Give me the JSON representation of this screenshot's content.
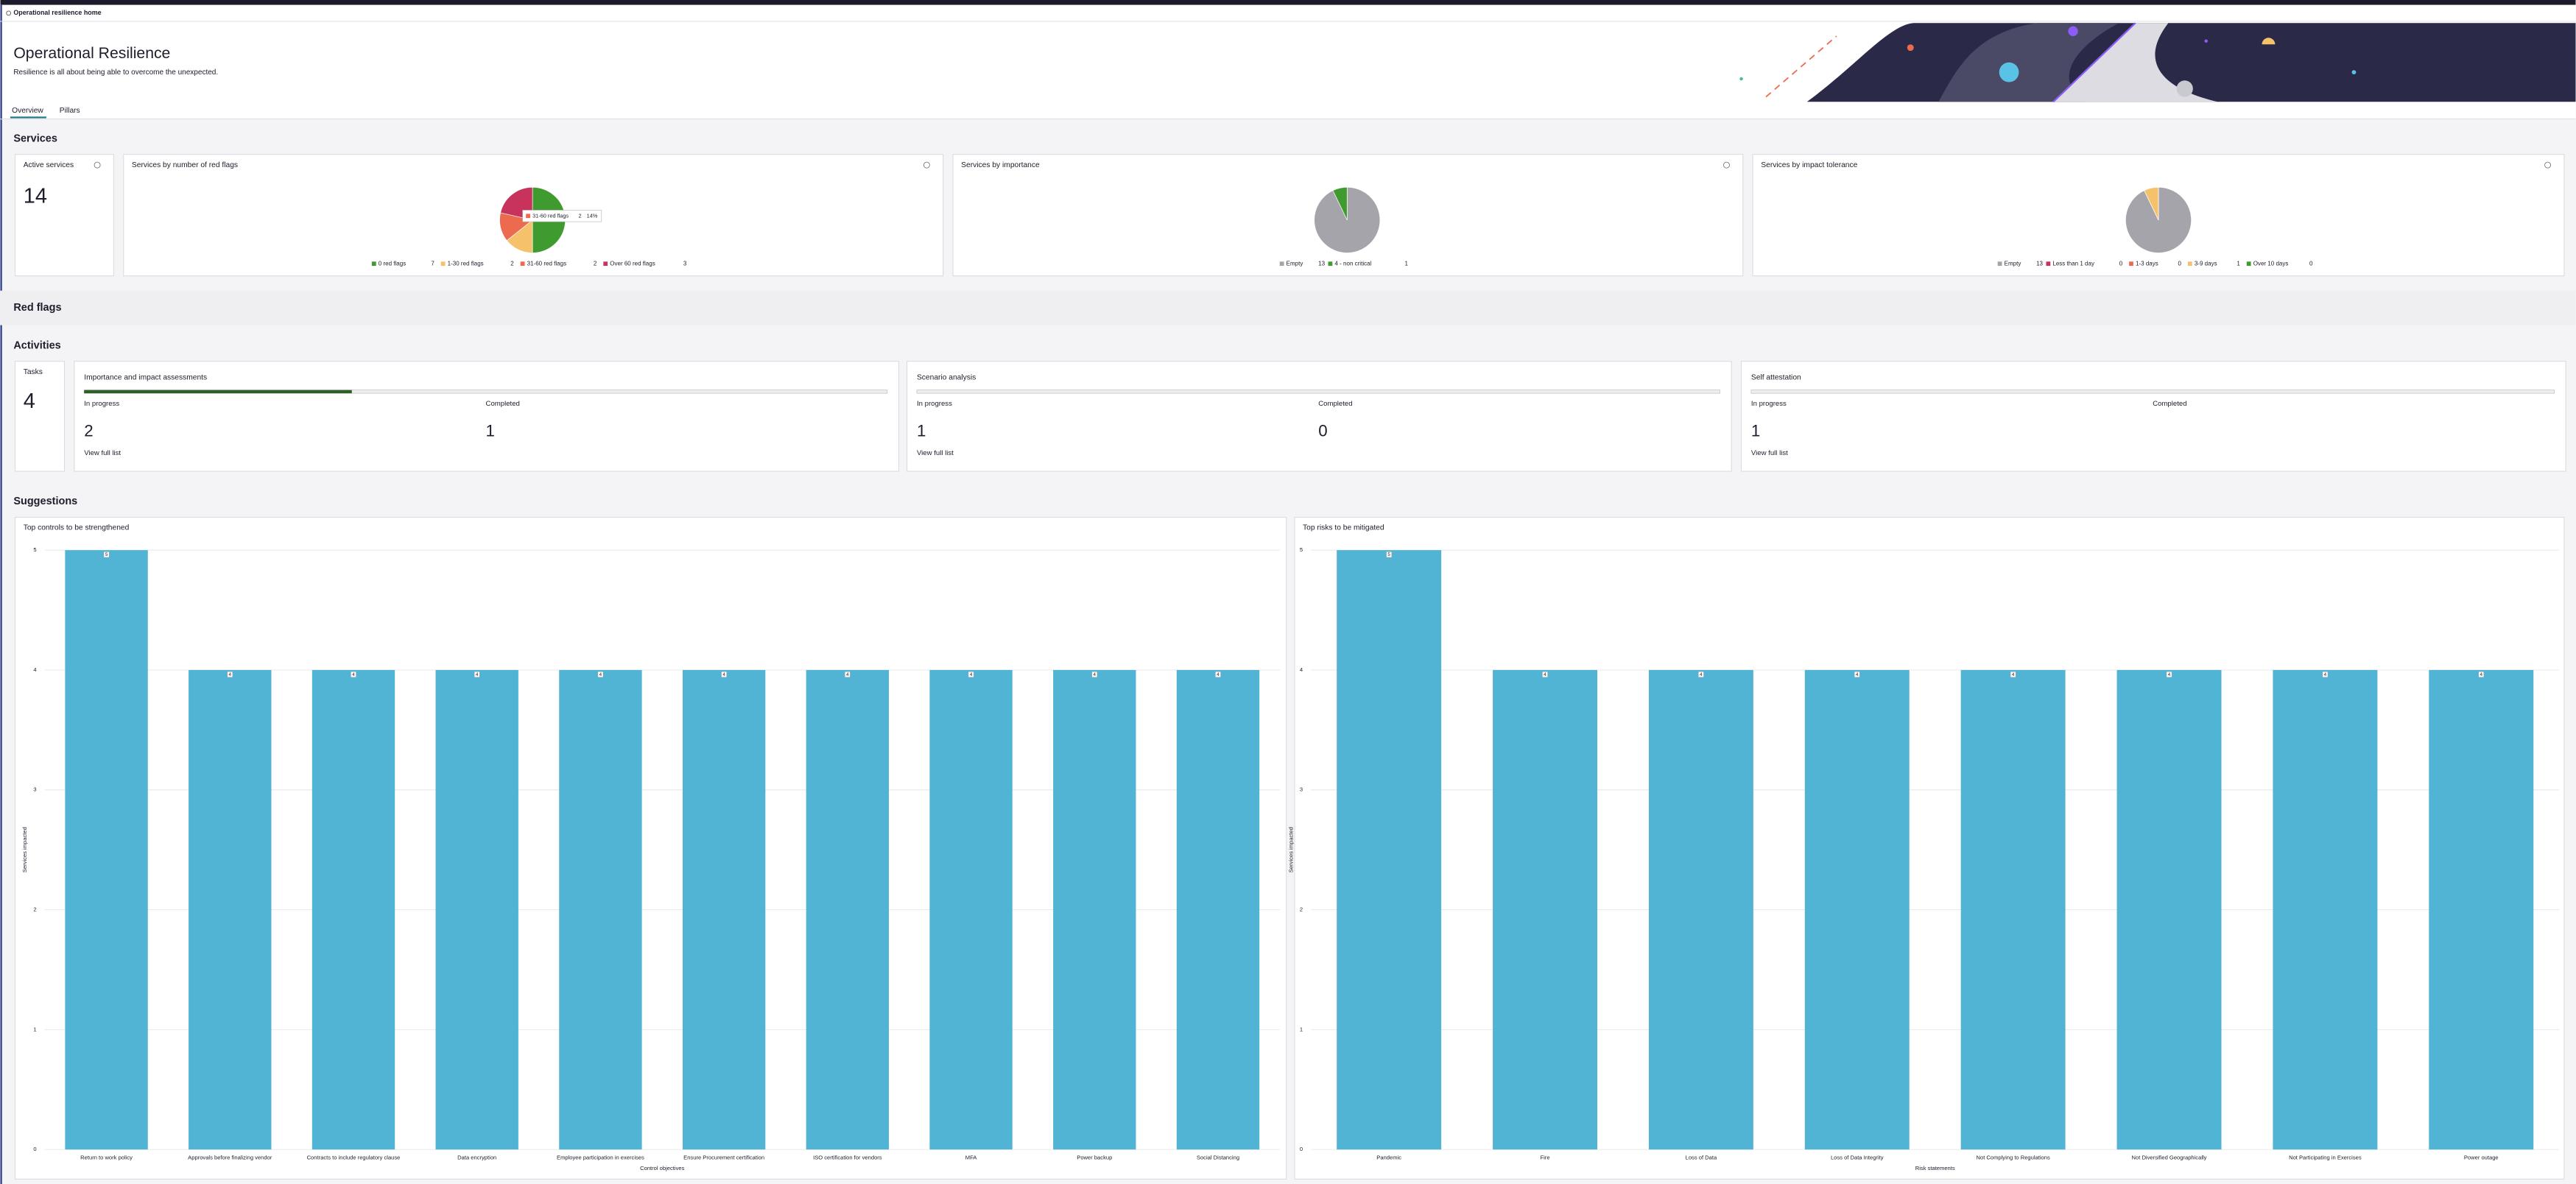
{
  "app_bar": {
    "title": "Operational resilience home"
  },
  "header": {
    "title": "Operational Resilience",
    "subtitle": "Resilience is all about being able to overcome the unexpected."
  },
  "tabs": [
    "Overview",
    "Pillars"
  ],
  "sections": {
    "services": "Services",
    "red_flags": "Red flags",
    "activities": "Activities",
    "suggestions": "Suggestions"
  },
  "active_services": {
    "title": "Active services",
    "value": 14
  },
  "tasks": {
    "title": "Tasks",
    "value": 4
  },
  "activities": [
    {
      "title": "Importance and impact assessments",
      "in_progress_label": "In progress",
      "in_progress": 2,
      "completed_label": "Completed",
      "completed": 1,
      "link": "View full list"
    },
    {
      "title": "Scenario analysis",
      "in_progress_label": "In progress",
      "in_progress": 1,
      "completed_label": "Completed",
      "completed": 0,
      "link": "View full list"
    },
    {
      "title": "Self attestation",
      "in_progress_label": "In progress",
      "in_progress": 1,
      "completed_label": "Completed",
      "link": "View full list"
    }
  ],
  "chart_data": [
    {
      "type": "pie",
      "title": "Services by number of red flags",
      "categories": [
        "0 red flags",
        "1-30 red flags",
        "31-60 red flags",
        "Over 60 red flags"
      ],
      "values": [
        7,
        2,
        2,
        3
      ],
      "colors": [
        "#3f9b2f",
        "#f5c26b",
        "#ec6b4f",
        "#c8335c"
      ],
      "tooltip": {
        "category": "31-60 red flags",
        "value": 2,
        "share_label": "14%"
      }
    },
    {
      "type": "pie",
      "title": "Services by importance",
      "categories": [
        "Empty",
        "4 - non critical"
      ],
      "values": [
        13,
        1
      ],
      "colors": [
        "#a4a4aa",
        "#3f9b2f"
      ]
    },
    {
      "type": "pie",
      "title": "Services by impact tolerance",
      "categories": [
        "Empty",
        "Less than 1 day",
        "1-3 days",
        "3-9 days",
        "Over 10 days"
      ],
      "values": [
        13,
        0,
        0,
        1,
        0
      ],
      "colors": [
        "#a4a4aa",
        "#c8335c",
        "#ec6b4f",
        "#f5c26b",
        "#3f9b2f"
      ]
    },
    {
      "type": "bar",
      "title": "Top controls to be strengthened",
      "x_label": "Control objectives",
      "y_label": "Services impacted",
      "categories": [
        "Return to work policy",
        "Approvals before finalizing vendor",
        "Contracts to include regulatory clause",
        "Data encryption",
        "Employee participation in exercises",
        "Ensure Procurement certification",
        "ISO certification for vendors",
        "MFA",
        "Power backup",
        "Social Distancing"
      ],
      "values": [
        5,
        4,
        4,
        4,
        4,
        4,
        4,
        4,
        4,
        4
      ],
      "color": "#52b4d5",
      "ylim": [
        0,
        5
      ],
      "yticks": [
        0,
        1,
        2,
        3,
        4,
        5
      ],
      "grid": true
    },
    {
      "type": "bar",
      "title": "Top risks to be mitigated",
      "x_label": "Risk statements",
      "y_label": "Services impacted",
      "categories": [
        "Pandemic",
        "Fire",
        "Loss of Data",
        "Loss of Data Integrity",
        "Not Complying to Regulations",
        "Not Diversified Geographically",
        "Not Participating in Exercises",
        "Power outage"
      ],
      "values": [
        5,
        4,
        4,
        4,
        4,
        4,
        4,
        4
      ],
      "color": "#52b4d5",
      "ylim": [
        0,
        5
      ],
      "yticks": [
        0,
        1,
        2,
        3,
        4,
        5
      ],
      "grid": true
    }
  ]
}
